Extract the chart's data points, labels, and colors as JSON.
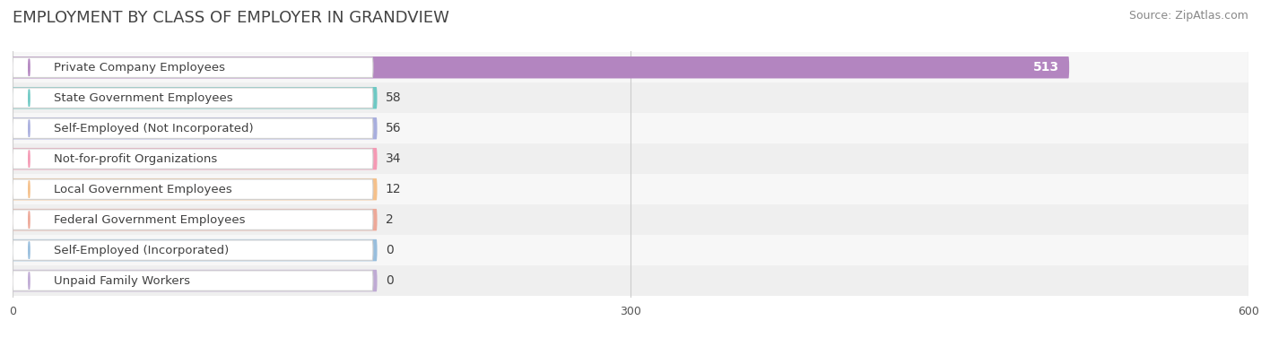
{
  "title": "EMPLOYMENT BY CLASS OF EMPLOYER IN GRANDVIEW",
  "source": "Source: ZipAtlas.com",
  "categories": [
    "Private Company Employees",
    "State Government Employees",
    "Self-Employed (Not Incorporated)",
    "Not-for-profit Organizations",
    "Local Government Employees",
    "Federal Government Employees",
    "Self-Employed (Incorporated)",
    "Unpaid Family Workers"
  ],
  "values": [
    513,
    58,
    56,
    34,
    12,
    2,
    0,
    0
  ],
  "bar_colors": [
    "#b385c0",
    "#6ec9c4",
    "#a8aede",
    "#f599b4",
    "#f5c08a",
    "#eda898",
    "#98bedd",
    "#bfaad4"
  ],
  "row_bg_even": "#f5f5f5",
  "row_bg_odd": "#ebebeb",
  "xlim": [
    0,
    600
  ],
  "xticks": [
    0,
    300,
    600
  ],
  "background_color": "#f5f5f5",
  "title_fontsize": 13,
  "source_fontsize": 9,
  "label_fontsize": 9.5,
  "value_fontsize": 9
}
